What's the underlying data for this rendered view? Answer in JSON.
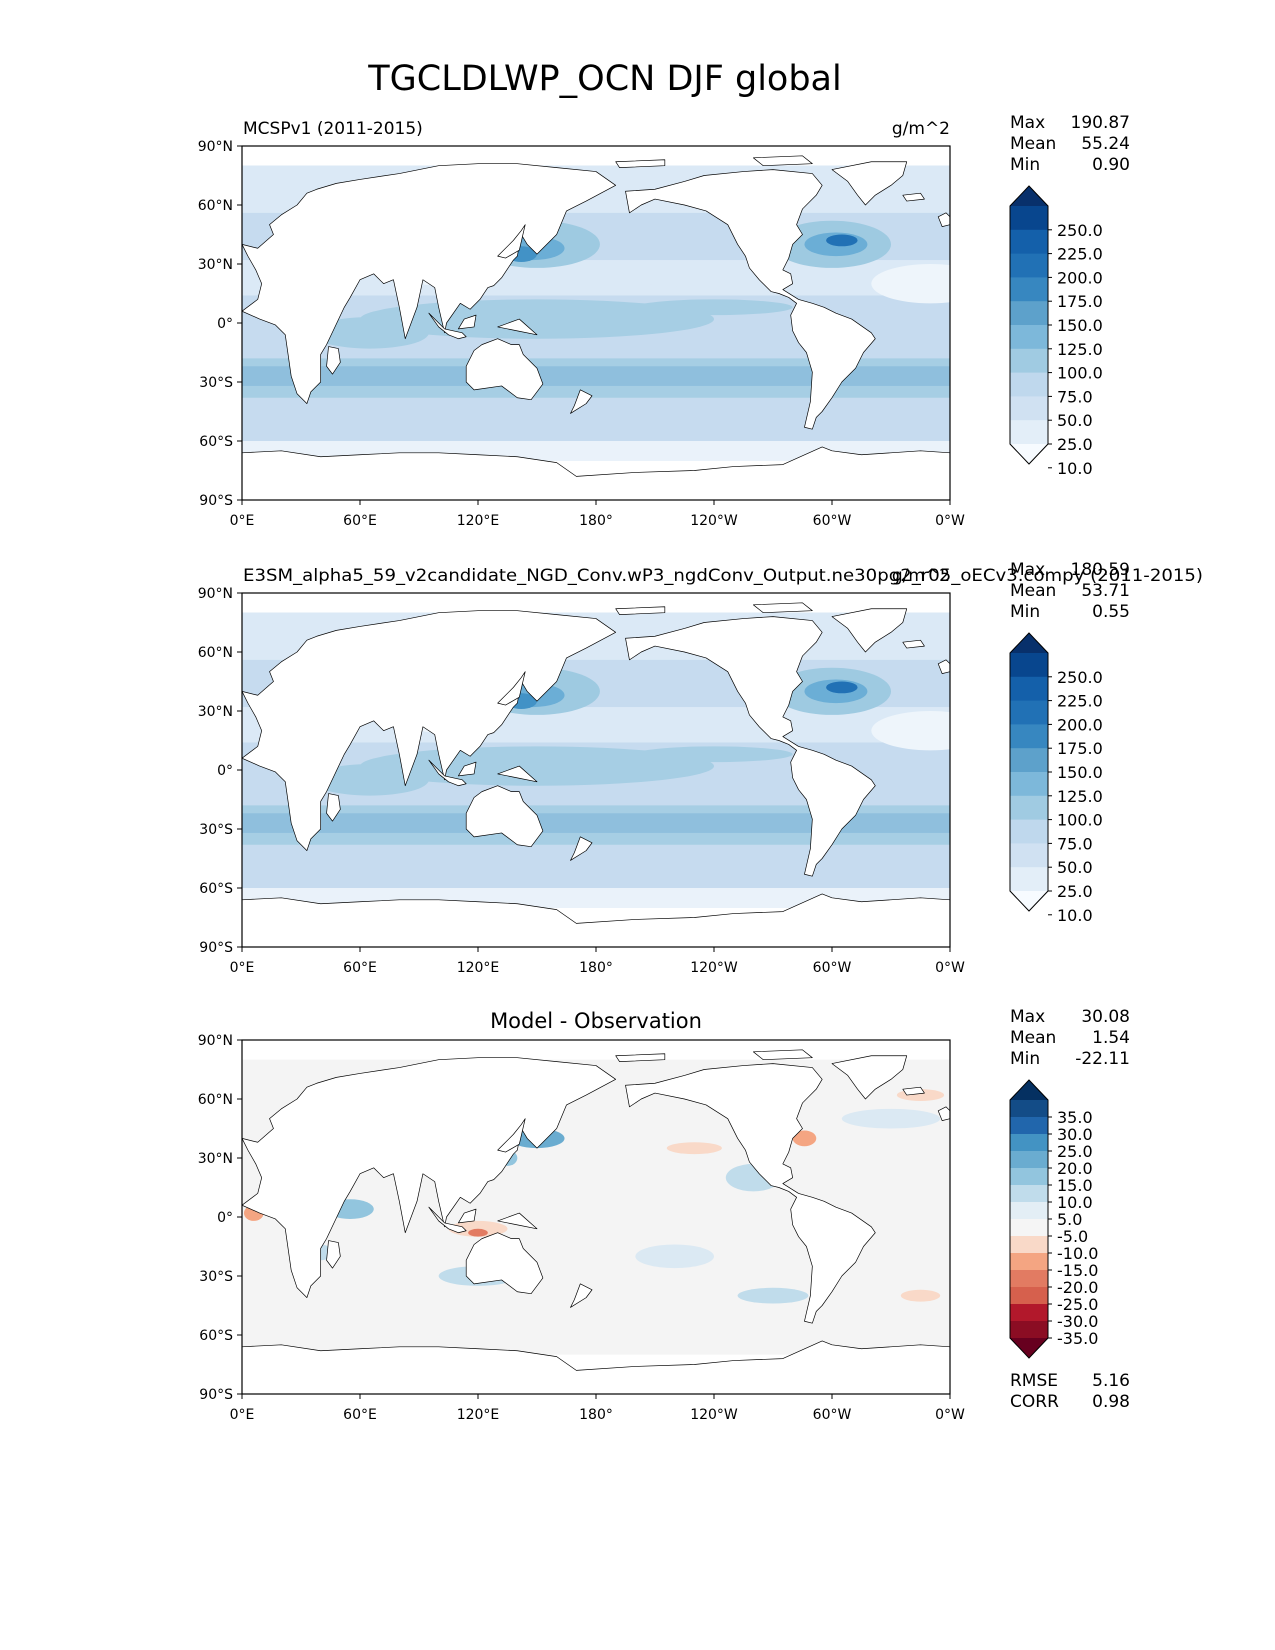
{
  "title": "TGCLDLWP_OCN DJF global",
  "lat_ticks": [
    "90°N",
    "60°N",
    "30°N",
    "0°",
    "30°S",
    "60°S",
    "90°S"
  ],
  "lon_ticks": [
    "0°E",
    "60°E",
    "120°E",
    "180°",
    "120°W",
    "60°W",
    "0°W"
  ],
  "panels": [
    {
      "id": "test",
      "left_title": "MCSPv1 (2011-2015)",
      "center_title": "",
      "right_title": "g/m^2",
      "stats": [
        {
          "label": "Max",
          "value": "190.87"
        },
        {
          "label": "Mean",
          "value": "55.24"
        },
        {
          "label": "Min",
          "value": "0.90"
        }
      ],
      "colorbar": {
        "levels": [
          "250.0",
          "225.0",
          "200.0",
          "175.0",
          "150.0",
          "125.0",
          "100.0",
          "75.0",
          "50.0",
          "25.0",
          "10.0"
        ],
        "colors": [
          "#08306b",
          "#08468e",
          "#1460aa",
          "#2171b5",
          "#3787c0",
          "#5da1cb",
          "#7db8da",
          "#a0cbe2",
          "#bfd8ed",
          "#d0e1f2",
          "#e3eef8",
          "#f7fbff"
        ]
      },
      "extra": []
    },
    {
      "id": "reference",
      "left_title": "E3SM_alpha5_59_v2candidate_NGD_Conv.wP3_ngdConv_Output.ne30pg2_r05_oECv3.compy (2011-2015)",
      "center_title": "",
      "right_title": "g/m^2",
      "stats": [
        {
          "label": "Max",
          "value": "180.59"
        },
        {
          "label": "Mean",
          "value": "53.71"
        },
        {
          "label": "Min",
          "value": "0.55"
        }
      ],
      "colorbar": {
        "levels": [
          "250.0",
          "225.0",
          "200.0",
          "175.0",
          "150.0",
          "125.0",
          "100.0",
          "75.0",
          "50.0",
          "25.0",
          "10.0"
        ],
        "colors": [
          "#08306b",
          "#08468e",
          "#1460aa",
          "#2171b5",
          "#3787c0",
          "#5da1cb",
          "#7db8da",
          "#a0cbe2",
          "#bfd8ed",
          "#d0e1f2",
          "#e3eef8",
          "#f7fbff"
        ]
      },
      "extra": []
    },
    {
      "id": "difference",
      "left_title": "",
      "center_title": "Model - Observation",
      "right_title": "",
      "stats": [
        {
          "label": "Max",
          "value": "30.08"
        },
        {
          "label": "Mean",
          "value": "1.54"
        },
        {
          "label": "Min",
          "value": "-22.11"
        }
      ],
      "colorbar": {
        "levels": [
          "35.0",
          "30.0",
          "25.0",
          "20.0",
          "15.0",
          "10.0",
          "5.0",
          "-5.0",
          "-10.0",
          "-15.0",
          "-20.0",
          "-25.0",
          "-30.0",
          "-35.0"
        ],
        "colors": [
          "#053061",
          "#134c87",
          "#2166ac",
          "#4393c3",
          "#6aacd0",
          "#92c5de",
          "#c0dceb",
          "#e3eef5",
          "#f5f5f5",
          "#f9d9c8",
          "#f4a582",
          "#e27b62",
          "#d6604d",
          "#b2182b",
          "#8b0d23",
          "#67001f"
        ]
      },
      "extra": [
        {
          "label": "RMSE",
          "value": "5.16"
        },
        {
          "label": "CORR",
          "value": "0.98"
        }
      ]
    }
  ],
  "colors": {
    "ocean_blue": "#c6dbef",
    "ocean_gray": "#f4f4f4",
    "land": "#ffffff",
    "coast": "#000000"
  }
}
